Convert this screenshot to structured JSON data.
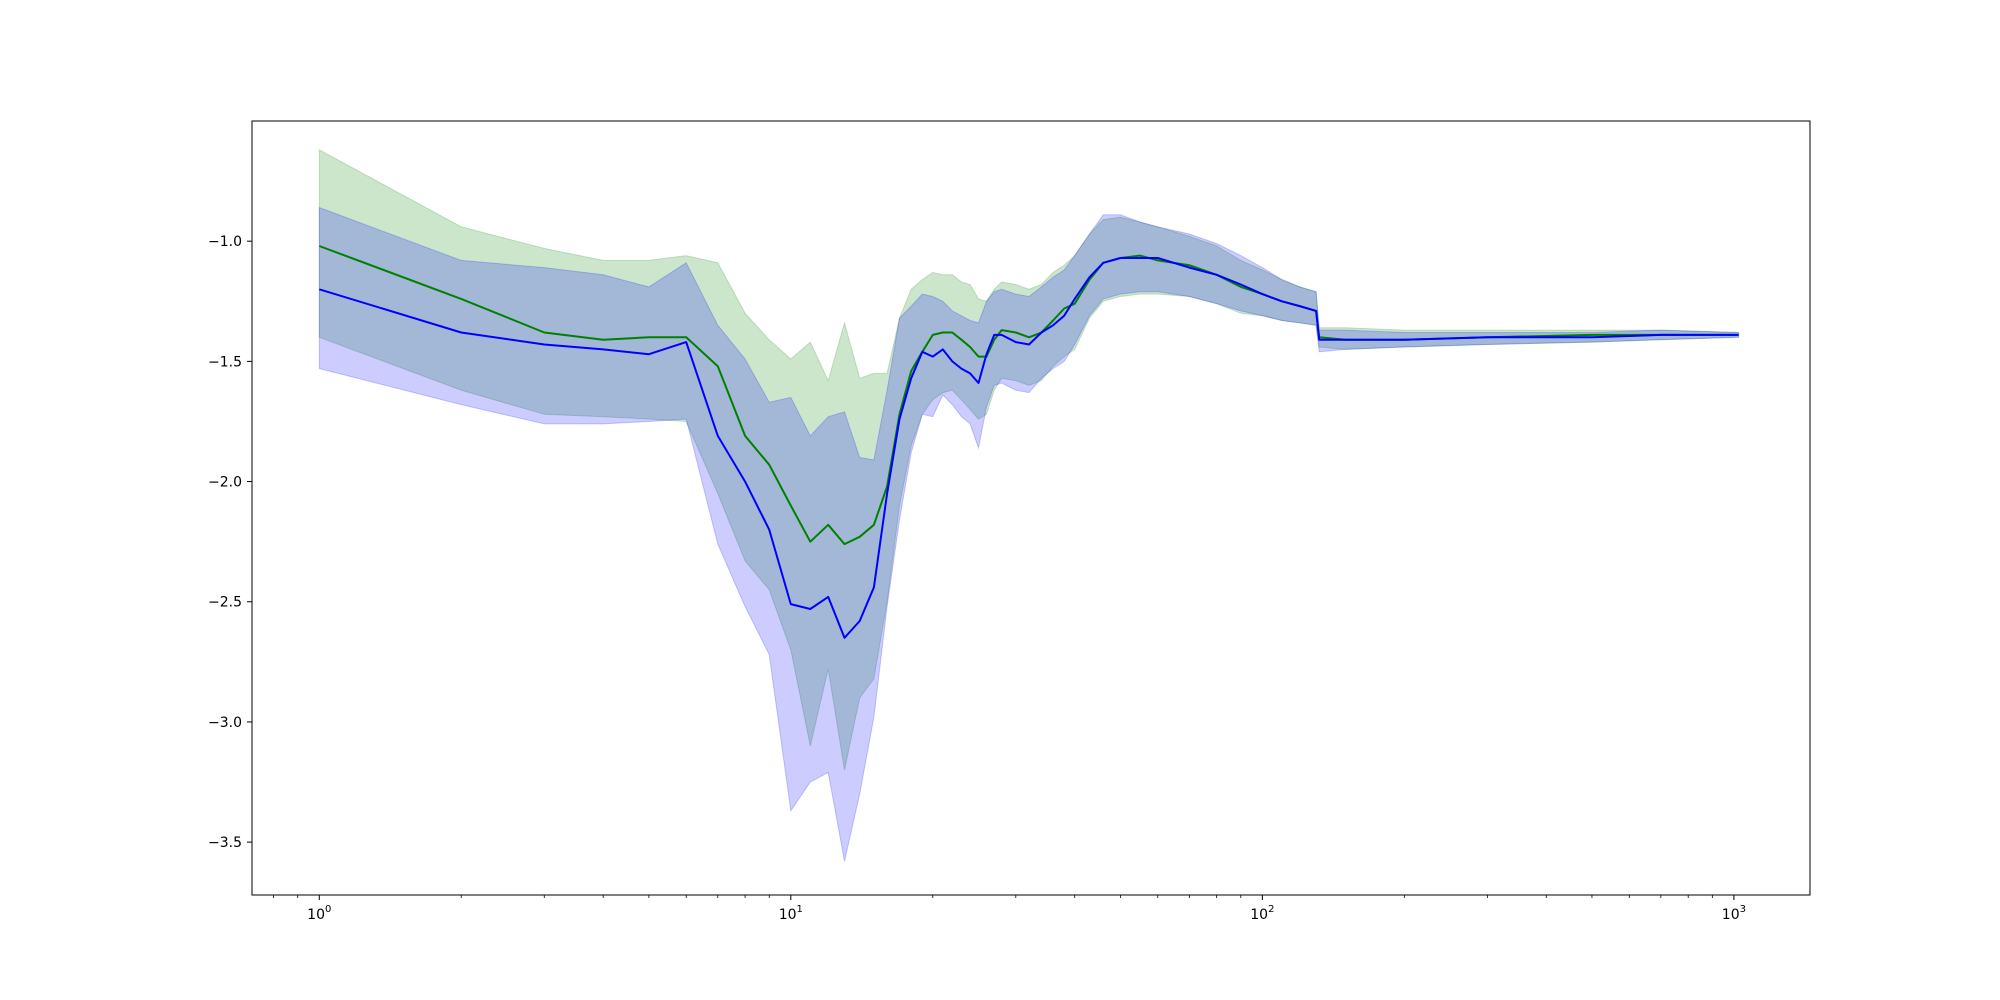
{
  "chart_data": {
    "type": "line",
    "title": "",
    "xlabel": "",
    "ylabel": "",
    "xscale": "log",
    "xlim": [
      0.72,
      1450
    ],
    "ylim": [
      -3.72,
      -0.5
    ],
    "grid": false,
    "x_ticks": [
      {
        "value": 1,
        "base": "10",
        "exp": "0"
      },
      {
        "value": 10,
        "base": "10",
        "exp": "1"
      },
      {
        "value": 100,
        "base": "10",
        "exp": "2"
      },
      {
        "value": 1000,
        "base": "10",
        "exp": "3"
      }
    ],
    "y_ticks": [
      {
        "value": -1.0,
        "label": "−1.0"
      },
      {
        "value": -1.5,
        "label": "−1.5"
      },
      {
        "value": -2.0,
        "label": "−2.0"
      },
      {
        "value": -2.5,
        "label": "−2.5"
      },
      {
        "value": -3.0,
        "label": "−3.0"
      },
      {
        "value": -3.5,
        "label": "−3.5"
      }
    ],
    "series": [
      {
        "color": "#008000",
        "band_color": "#008000",
        "band_opacity": 0.2,
        "points": [
          [
            1,
            -1.02,
            -1.4,
            -0.62
          ],
          [
            2,
            -1.24,
            -1.62,
            -0.94
          ],
          [
            3,
            -1.38,
            -1.72,
            -1.03
          ],
          [
            4,
            -1.41,
            -1.73,
            -1.08
          ],
          [
            5,
            -1.4,
            -1.74,
            -1.08
          ],
          [
            6,
            -1.4,
            -1.75,
            -1.06
          ],
          [
            7,
            -1.52,
            -2.05,
            -1.09
          ],
          [
            8,
            -1.81,
            -2.33,
            -1.3
          ],
          [
            9,
            -1.93,
            -2.45,
            -1.41
          ],
          [
            10,
            -2.1,
            -2.7,
            -1.49
          ],
          [
            11,
            -2.25,
            -3.1,
            -1.42
          ],
          [
            12,
            -2.18,
            -2.78,
            -1.58
          ],
          [
            13,
            -2.26,
            -3.2,
            -1.34
          ],
          [
            14,
            -2.23,
            -2.9,
            -1.57
          ],
          [
            15,
            -2.18,
            -2.82,
            -1.55
          ],
          [
            16,
            -2.02,
            -2.5,
            -1.55
          ],
          [
            17,
            -1.72,
            -2.1,
            -1.32
          ],
          [
            18,
            -1.54,
            -1.85,
            -1.2
          ],
          [
            19,
            -1.46,
            -1.72,
            -1.16
          ],
          [
            20,
            -1.39,
            -1.66,
            -1.13
          ],
          [
            21,
            -1.38,
            -1.63,
            -1.14
          ],
          [
            22,
            -1.38,
            -1.62,
            -1.14
          ],
          [
            23,
            -1.41,
            -1.66,
            -1.17
          ],
          [
            24,
            -1.44,
            -1.7,
            -1.18
          ],
          [
            25,
            -1.48,
            -1.74,
            -1.24
          ],
          [
            26,
            -1.48,
            -1.72,
            -1.25
          ],
          [
            27,
            -1.41,
            -1.62,
            -1.2
          ],
          [
            28,
            -1.37,
            -1.57,
            -1.17
          ],
          [
            30,
            -1.38,
            -1.58,
            -1.18
          ],
          [
            32,
            -1.4,
            -1.6,
            -1.2
          ],
          [
            34,
            -1.38,
            -1.58,
            -1.18
          ],
          [
            36,
            -1.33,
            -1.52,
            -1.13
          ],
          [
            38,
            -1.28,
            -1.48,
            -1.1
          ],
          [
            40,
            -1.26,
            -1.45,
            -1.06
          ],
          [
            43,
            -1.16,
            -1.32,
            -0.97
          ],
          [
            46,
            -1.09,
            -1.25,
            -0.91
          ],
          [
            50,
            -1.07,
            -1.23,
            -0.9
          ],
          [
            55,
            -1.06,
            -1.22,
            -0.92
          ],
          [
            60,
            -1.08,
            -1.22,
            -0.94
          ],
          [
            70,
            -1.1,
            -1.23,
            -0.98
          ],
          [
            80,
            -1.14,
            -1.26,
            -1.02
          ],
          [
            90,
            -1.19,
            -1.3,
            -1.08
          ],
          [
            100,
            -1.22,
            -1.31,
            -1.12
          ],
          [
            110,
            -1.25,
            -1.33,
            -1.16
          ],
          [
            120,
            -1.27,
            -1.34,
            -1.19
          ],
          [
            130,
            -1.29,
            -1.35,
            -1.21
          ],
          [
            132,
            -1.4,
            -1.44,
            -1.36
          ],
          [
            150,
            -1.41,
            -1.45,
            -1.36
          ],
          [
            200,
            -1.41,
            -1.44,
            -1.37
          ],
          [
            300,
            -1.4,
            -1.43,
            -1.37
          ],
          [
            500,
            -1.39,
            -1.42,
            -1.37
          ],
          [
            700,
            -1.39,
            -1.41,
            -1.37
          ],
          [
            1023,
            -1.39,
            -1.4,
            -1.38
          ]
        ]
      },
      {
        "color": "#0000ff",
        "band_color": "#0000ff",
        "band_opacity": 0.2,
        "points": [
          [
            1,
            -1.2,
            -1.53,
            -0.86
          ],
          [
            2,
            -1.38,
            -1.68,
            -1.08
          ],
          [
            3,
            -1.43,
            -1.76,
            -1.11
          ],
          [
            4,
            -1.45,
            -1.76,
            -1.14
          ],
          [
            5,
            -1.47,
            -1.75,
            -1.19
          ],
          [
            6,
            -1.42,
            -1.74,
            -1.09
          ],
          [
            7,
            -1.81,
            -2.26,
            -1.35
          ],
          [
            8,
            -2.0,
            -2.52,
            -1.49
          ],
          [
            9,
            -2.2,
            -2.72,
            -1.67
          ],
          [
            10,
            -2.51,
            -3.37,
            -1.65
          ],
          [
            11,
            -2.53,
            -3.25,
            -1.81
          ],
          [
            12,
            -2.48,
            -3.21,
            -1.73
          ],
          [
            13,
            -2.65,
            -3.58,
            -1.71
          ],
          [
            14,
            -2.58,
            -3.3,
            -1.9
          ],
          [
            15,
            -2.44,
            -2.98,
            -1.91
          ],
          [
            16,
            -2.05,
            -2.52,
            -1.62
          ],
          [
            17,
            -1.74,
            -2.16,
            -1.32
          ],
          [
            18,
            -1.57,
            -1.88,
            -1.27
          ],
          [
            19,
            -1.46,
            -1.72,
            -1.22
          ],
          [
            20,
            -1.48,
            -1.73,
            -1.23
          ],
          [
            21,
            -1.45,
            -1.64,
            -1.25
          ],
          [
            22,
            -1.5,
            -1.68,
            -1.29
          ],
          [
            23,
            -1.53,
            -1.73,
            -1.31
          ],
          [
            24,
            -1.55,
            -1.76,
            -1.33
          ],
          [
            25,
            -1.59,
            -1.86,
            -1.34
          ],
          [
            26,
            -1.47,
            -1.69,
            -1.25
          ],
          [
            27,
            -1.39,
            -1.6,
            -1.21
          ],
          [
            28,
            -1.39,
            -1.59,
            -1.2
          ],
          [
            30,
            -1.42,
            -1.62,
            -1.22
          ],
          [
            32,
            -1.43,
            -1.63,
            -1.23
          ],
          [
            34,
            -1.38,
            -1.57,
            -1.19
          ],
          [
            36,
            -1.35,
            -1.53,
            -1.15
          ],
          [
            38,
            -1.31,
            -1.5,
            -1.12
          ],
          [
            40,
            -1.24,
            -1.43,
            -1.06
          ],
          [
            43,
            -1.15,
            -1.31,
            -0.97
          ],
          [
            46,
            -1.09,
            -1.24,
            -0.89
          ],
          [
            50,
            -1.07,
            -1.22,
            -0.89
          ],
          [
            55,
            -1.07,
            -1.21,
            -0.92
          ],
          [
            60,
            -1.07,
            -1.21,
            -0.94
          ],
          [
            70,
            -1.11,
            -1.23,
            -0.97
          ],
          [
            80,
            -1.14,
            -1.26,
            -1.01
          ],
          [
            90,
            -1.18,
            -1.29,
            -1.06
          ],
          [
            100,
            -1.22,
            -1.31,
            -1.11
          ],
          [
            110,
            -1.25,
            -1.33,
            -1.16
          ],
          [
            120,
            -1.27,
            -1.34,
            -1.19
          ],
          [
            130,
            -1.29,
            -1.35,
            -1.21
          ],
          [
            132,
            -1.41,
            -1.46,
            -1.37
          ],
          [
            150,
            -1.41,
            -1.45,
            -1.37
          ],
          [
            200,
            -1.41,
            -1.44,
            -1.38
          ],
          [
            300,
            -1.4,
            -1.43,
            -1.38
          ],
          [
            500,
            -1.4,
            -1.42,
            -1.38
          ],
          [
            700,
            -1.39,
            -1.41,
            -1.37
          ],
          [
            1023,
            -1.39,
            -1.4,
            -1.38
          ]
        ]
      }
    ]
  }
}
